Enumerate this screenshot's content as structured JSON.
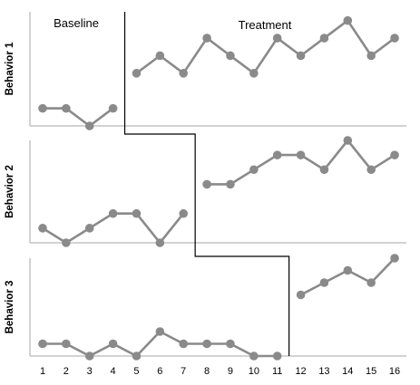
{
  "chart_data": {
    "type": "line",
    "phases": [
      "Baseline",
      "Treatment"
    ],
    "x": [
      1,
      2,
      3,
      4,
      5,
      6,
      7,
      8,
      9,
      10,
      11,
      12,
      13,
      14,
      15,
      16
    ],
    "panels": [
      {
        "name": "Behavior 1",
        "ylim": [
          0,
          6.5
        ],
        "baseline": {
          "x": [
            1,
            2,
            3,
            4
          ],
          "values": [
            1,
            1,
            0,
            1
          ]
        },
        "treatment": {
          "x": [
            5,
            6,
            7,
            8,
            9,
            10,
            11,
            12,
            13,
            14,
            15,
            16
          ],
          "values": [
            3,
            4,
            3,
            5,
            4,
            3,
            5,
            4,
            5,
            6,
            4,
            5
          ]
        }
      },
      {
        "name": "Behavior 2",
        "ylim": [
          0,
          7
        ],
        "baseline": {
          "x": [
            1,
            2,
            3,
            4,
            5,
            6,
            7
          ],
          "values": [
            1,
            0,
            1,
            2,
            2,
            0,
            2
          ]
        },
        "treatment": {
          "x": [
            8,
            9,
            10,
            11,
            12,
            13,
            14,
            15,
            16
          ],
          "values": [
            4,
            4,
            5,
            6,
            6,
            5,
            7,
            5,
            6
          ]
        }
      },
      {
        "name": "Behavior 3",
        "ylim": [
          0,
          8
        ],
        "baseline": {
          "x": [
            1,
            2,
            3,
            4,
            5,
            6,
            7,
            8,
            9,
            10,
            11
          ],
          "values": [
            1,
            1,
            0,
            1,
            0,
            2,
            1,
            1,
            1,
            0,
            0
          ]
        },
        "treatment": {
          "x": [
            12,
            13,
            14,
            15,
            16
          ],
          "values": [
            5,
            6,
            7,
            6,
            8
          ]
        }
      }
    ],
    "xlabel": "",
    "grid": false,
    "legend": "none",
    "colors": {
      "series": "#8a8a8a",
      "axis": "#a6a6a6",
      "phase_line": "#000000"
    }
  }
}
